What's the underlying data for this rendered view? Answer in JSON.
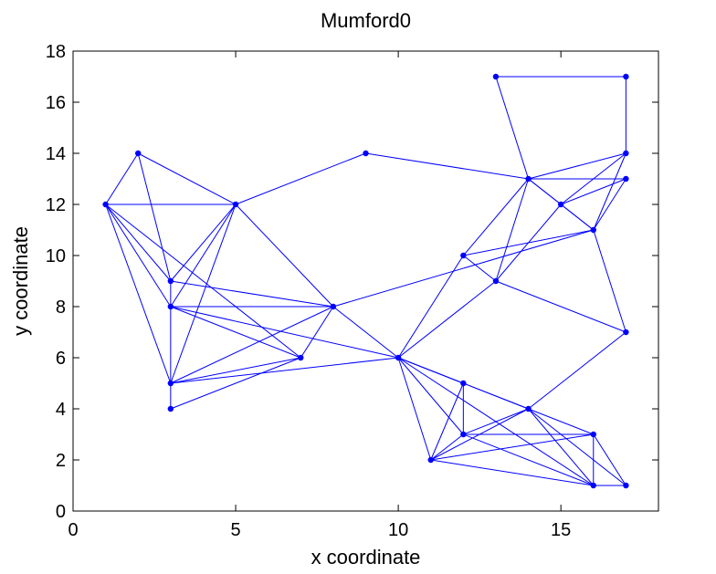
{
  "chart_data": {
    "type": "scatter",
    "title": "Mumford0",
    "xlabel": "x coordinate",
    "ylabel": "y coordinate",
    "xlim": [
      0,
      18
    ],
    "ylim": [
      0,
      18
    ],
    "xticks": [
      0,
      5,
      10,
      15
    ],
    "yticks": [
      0,
      2,
      4,
      6,
      8,
      10,
      12,
      14,
      16,
      18
    ],
    "grid": false,
    "color": "#0000ff",
    "nodes": [
      [
        1,
        12
      ],
      [
        2,
        14
      ],
      [
        3,
        9
      ],
      [
        3,
        8
      ],
      [
        3,
        5
      ],
      [
        3,
        4
      ],
      [
        5,
        12
      ],
      [
        7,
        6
      ],
      [
        8,
        8
      ],
      [
        9,
        14
      ],
      [
        10,
        6
      ],
      [
        11,
        2
      ],
      [
        12,
        10
      ],
      [
        12,
        5
      ],
      [
        12,
        3
      ],
      [
        13,
        9
      ],
      [
        13,
        17
      ],
      [
        14,
        13
      ],
      [
        14,
        4
      ],
      [
        15,
        12
      ],
      [
        16,
        11
      ],
      [
        16,
        3
      ],
      [
        16,
        1
      ],
      [
        17,
        17
      ],
      [
        17,
        14
      ],
      [
        17,
        13
      ],
      [
        17,
        7
      ],
      [
        17,
        1
      ]
    ],
    "edges": [
      [
        [
          1,
          12
        ],
        [
          2,
          14
        ]
      ],
      [
        [
          1,
          12
        ],
        [
          5,
          12
        ]
      ],
      [
        [
          1,
          12
        ],
        [
          3,
          9
        ]
      ],
      [
        [
          1,
          12
        ],
        [
          3,
          8
        ]
      ],
      [
        [
          1,
          12
        ],
        [
          3,
          5
        ]
      ],
      [
        [
          1,
          12
        ],
        [
          7,
          6
        ]
      ],
      [
        [
          2,
          14
        ],
        [
          3,
          9
        ]
      ],
      [
        [
          2,
          14
        ],
        [
          5,
          12
        ]
      ],
      [
        [
          5,
          12
        ],
        [
          3,
          9
        ]
      ],
      [
        [
          5,
          12
        ],
        [
          3,
          8
        ]
      ],
      [
        [
          5,
          12
        ],
        [
          3,
          5
        ]
      ],
      [
        [
          5,
          12
        ],
        [
          8,
          8
        ]
      ],
      [
        [
          5,
          12
        ],
        [
          9,
          14
        ]
      ],
      [
        [
          3,
          9
        ],
        [
          3,
          8
        ]
      ],
      [
        [
          3,
          9
        ],
        [
          8,
          8
        ]
      ],
      [
        [
          3,
          8
        ],
        [
          3,
          5
        ]
      ],
      [
        [
          3,
          8
        ],
        [
          8,
          8
        ]
      ],
      [
        [
          3,
          8
        ],
        [
          7,
          6
        ]
      ],
      [
        [
          3,
          8
        ],
        [
          10,
          6
        ]
      ],
      [
        [
          3,
          5
        ],
        [
          3,
          4
        ]
      ],
      [
        [
          3,
          5
        ],
        [
          8,
          8
        ]
      ],
      [
        [
          3,
          5
        ],
        [
          7,
          6
        ]
      ],
      [
        [
          3,
          5
        ],
        [
          10,
          6
        ]
      ],
      [
        [
          3,
          4
        ],
        [
          7,
          6
        ]
      ],
      [
        [
          7,
          6
        ],
        [
          8,
          8
        ]
      ],
      [
        [
          8,
          8
        ],
        [
          10,
          6
        ]
      ],
      [
        [
          8,
          8
        ],
        [
          16,
          11
        ]
      ],
      [
        [
          9,
          14
        ],
        [
          14,
          13
        ]
      ],
      [
        [
          10,
          6
        ],
        [
          12,
          10
        ]
      ],
      [
        [
          10,
          6
        ],
        [
          13,
          9
        ]
      ],
      [
        [
          10,
          6
        ],
        [
          11,
          2
        ]
      ],
      [
        [
          10,
          6
        ],
        [
          12,
          5
        ]
      ],
      [
        [
          10,
          6
        ],
        [
          12,
          3
        ]
      ],
      [
        [
          10,
          6
        ],
        [
          14,
          4
        ]
      ],
      [
        [
          10,
          6
        ],
        [
          16,
          1
        ]
      ],
      [
        [
          12,
          10
        ],
        [
          13,
          9
        ]
      ],
      [
        [
          12,
          10
        ],
        [
          14,
          13
        ]
      ],
      [
        [
          12,
          10
        ],
        [
          16,
          11
        ]
      ],
      [
        [
          13,
          9
        ],
        [
          14,
          13
        ]
      ],
      [
        [
          13,
          9
        ],
        [
          15,
          12
        ]
      ],
      [
        [
          13,
          9
        ],
        [
          17,
          7
        ]
      ],
      [
        [
          13,
          17
        ],
        [
          17,
          17
        ]
      ],
      [
        [
          13,
          17
        ],
        [
          14,
          13
        ]
      ],
      [
        [
          17,
          17
        ],
        [
          17,
          14
        ]
      ],
      [
        [
          14,
          13
        ],
        [
          17,
          14
        ]
      ],
      [
        [
          14,
          13
        ],
        [
          17,
          13
        ]
      ],
      [
        [
          14,
          13
        ],
        [
          15,
          12
        ]
      ],
      [
        [
          14,
          13
        ],
        [
          16,
          11
        ]
      ],
      [
        [
          15,
          12
        ],
        [
          17,
          14
        ]
      ],
      [
        [
          15,
          12
        ],
        [
          17,
          13
        ]
      ],
      [
        [
          15,
          12
        ],
        [
          16,
          11
        ]
      ],
      [
        [
          16,
          11
        ],
        [
          17,
          14
        ]
      ],
      [
        [
          16,
          11
        ],
        [
          17,
          13
        ]
      ],
      [
        [
          16,
          11
        ],
        [
          17,
          7
        ]
      ],
      [
        [
          17,
          7
        ],
        [
          14,
          4
        ]
      ],
      [
        [
          11,
          2
        ],
        [
          12,
          5
        ]
      ],
      [
        [
          11,
          2
        ],
        [
          12,
          3
        ]
      ],
      [
        [
          11,
          2
        ],
        [
          14,
          4
        ]
      ],
      [
        [
          11,
          2
        ],
        [
          16,
          3
        ]
      ],
      [
        [
          11,
          2
        ],
        [
          16,
          1
        ]
      ],
      [
        [
          12,
          5
        ],
        [
          12,
          3
        ]
      ],
      [
        [
          12,
          5
        ],
        [
          14,
          4
        ]
      ],
      [
        [
          12,
          3
        ],
        [
          14,
          4
        ]
      ],
      [
        [
          12,
          3
        ],
        [
          16,
          3
        ]
      ],
      [
        [
          12,
          3
        ],
        [
          16,
          1
        ]
      ],
      [
        [
          14,
          4
        ],
        [
          16,
          3
        ]
      ],
      [
        [
          14,
          4
        ],
        [
          16,
          1
        ]
      ],
      [
        [
          14,
          4
        ],
        [
          17,
          1
        ]
      ],
      [
        [
          16,
          3
        ],
        [
          16,
          1
        ]
      ],
      [
        [
          16,
          3
        ],
        [
          17,
          1
        ]
      ],
      [
        [
          16,
          1
        ],
        [
          17,
          1
        ]
      ]
    ]
  }
}
